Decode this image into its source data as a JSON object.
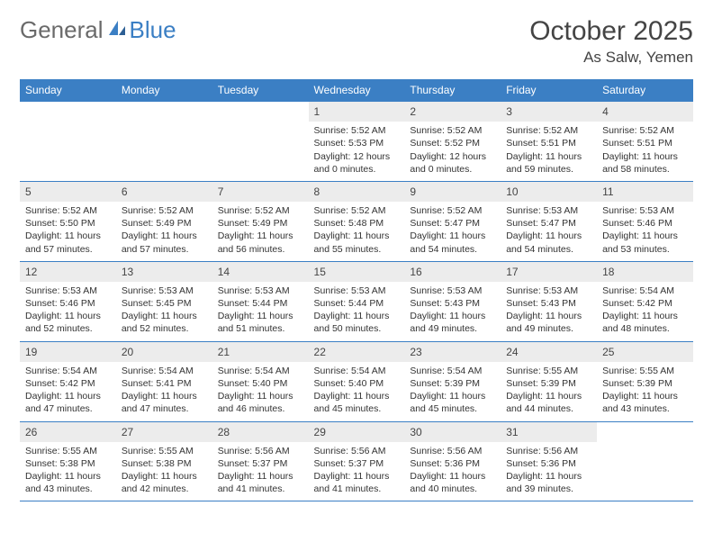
{
  "logo": {
    "part1": "General",
    "part2": "Blue"
  },
  "title": "October 2025",
  "location": "As Salw, Yemen",
  "header_bg": "#3b7fc4",
  "daynum_bg": "#ececec",
  "border_color": "#3b7fc4",
  "weekdays": [
    "Sunday",
    "Monday",
    "Tuesday",
    "Wednesday",
    "Thursday",
    "Friday",
    "Saturday"
  ],
  "weeks": [
    [
      {
        "n": "",
        "lines": []
      },
      {
        "n": "",
        "lines": []
      },
      {
        "n": "",
        "lines": []
      },
      {
        "n": "1",
        "lines": [
          "Sunrise: 5:52 AM",
          "Sunset: 5:53 PM",
          "Daylight: 12 hours and 0 minutes."
        ]
      },
      {
        "n": "2",
        "lines": [
          "Sunrise: 5:52 AM",
          "Sunset: 5:52 PM",
          "Daylight: 12 hours and 0 minutes."
        ]
      },
      {
        "n": "3",
        "lines": [
          "Sunrise: 5:52 AM",
          "Sunset: 5:51 PM",
          "Daylight: 11 hours and 59 minutes."
        ]
      },
      {
        "n": "4",
        "lines": [
          "Sunrise: 5:52 AM",
          "Sunset: 5:51 PM",
          "Daylight: 11 hours and 58 minutes."
        ]
      }
    ],
    [
      {
        "n": "5",
        "lines": [
          "Sunrise: 5:52 AM",
          "Sunset: 5:50 PM",
          "Daylight: 11 hours and 57 minutes."
        ]
      },
      {
        "n": "6",
        "lines": [
          "Sunrise: 5:52 AM",
          "Sunset: 5:49 PM",
          "Daylight: 11 hours and 57 minutes."
        ]
      },
      {
        "n": "7",
        "lines": [
          "Sunrise: 5:52 AM",
          "Sunset: 5:49 PM",
          "Daylight: 11 hours and 56 minutes."
        ]
      },
      {
        "n": "8",
        "lines": [
          "Sunrise: 5:52 AM",
          "Sunset: 5:48 PM",
          "Daylight: 11 hours and 55 minutes."
        ]
      },
      {
        "n": "9",
        "lines": [
          "Sunrise: 5:52 AM",
          "Sunset: 5:47 PM",
          "Daylight: 11 hours and 54 minutes."
        ]
      },
      {
        "n": "10",
        "lines": [
          "Sunrise: 5:53 AM",
          "Sunset: 5:47 PM",
          "Daylight: 11 hours and 54 minutes."
        ]
      },
      {
        "n": "11",
        "lines": [
          "Sunrise: 5:53 AM",
          "Sunset: 5:46 PM",
          "Daylight: 11 hours and 53 minutes."
        ]
      }
    ],
    [
      {
        "n": "12",
        "lines": [
          "Sunrise: 5:53 AM",
          "Sunset: 5:46 PM",
          "Daylight: 11 hours and 52 minutes."
        ]
      },
      {
        "n": "13",
        "lines": [
          "Sunrise: 5:53 AM",
          "Sunset: 5:45 PM",
          "Daylight: 11 hours and 52 minutes."
        ]
      },
      {
        "n": "14",
        "lines": [
          "Sunrise: 5:53 AM",
          "Sunset: 5:44 PM",
          "Daylight: 11 hours and 51 minutes."
        ]
      },
      {
        "n": "15",
        "lines": [
          "Sunrise: 5:53 AM",
          "Sunset: 5:44 PM",
          "Daylight: 11 hours and 50 minutes."
        ]
      },
      {
        "n": "16",
        "lines": [
          "Sunrise: 5:53 AM",
          "Sunset: 5:43 PM",
          "Daylight: 11 hours and 49 minutes."
        ]
      },
      {
        "n": "17",
        "lines": [
          "Sunrise: 5:53 AM",
          "Sunset: 5:43 PM",
          "Daylight: 11 hours and 49 minutes."
        ]
      },
      {
        "n": "18",
        "lines": [
          "Sunrise: 5:54 AM",
          "Sunset: 5:42 PM",
          "Daylight: 11 hours and 48 minutes."
        ]
      }
    ],
    [
      {
        "n": "19",
        "lines": [
          "Sunrise: 5:54 AM",
          "Sunset: 5:42 PM",
          "Daylight: 11 hours and 47 minutes."
        ]
      },
      {
        "n": "20",
        "lines": [
          "Sunrise: 5:54 AM",
          "Sunset: 5:41 PM",
          "Daylight: 11 hours and 47 minutes."
        ]
      },
      {
        "n": "21",
        "lines": [
          "Sunrise: 5:54 AM",
          "Sunset: 5:40 PM",
          "Daylight: 11 hours and 46 minutes."
        ]
      },
      {
        "n": "22",
        "lines": [
          "Sunrise: 5:54 AM",
          "Sunset: 5:40 PM",
          "Daylight: 11 hours and 45 minutes."
        ]
      },
      {
        "n": "23",
        "lines": [
          "Sunrise: 5:54 AM",
          "Sunset: 5:39 PM",
          "Daylight: 11 hours and 45 minutes."
        ]
      },
      {
        "n": "24",
        "lines": [
          "Sunrise: 5:55 AM",
          "Sunset: 5:39 PM",
          "Daylight: 11 hours and 44 minutes."
        ]
      },
      {
        "n": "25",
        "lines": [
          "Sunrise: 5:55 AM",
          "Sunset: 5:39 PM",
          "Daylight: 11 hours and 43 minutes."
        ]
      }
    ],
    [
      {
        "n": "26",
        "lines": [
          "Sunrise: 5:55 AM",
          "Sunset: 5:38 PM",
          "Daylight: 11 hours and 43 minutes."
        ]
      },
      {
        "n": "27",
        "lines": [
          "Sunrise: 5:55 AM",
          "Sunset: 5:38 PM",
          "Daylight: 11 hours and 42 minutes."
        ]
      },
      {
        "n": "28",
        "lines": [
          "Sunrise: 5:56 AM",
          "Sunset: 5:37 PM",
          "Daylight: 11 hours and 41 minutes."
        ]
      },
      {
        "n": "29",
        "lines": [
          "Sunrise: 5:56 AM",
          "Sunset: 5:37 PM",
          "Daylight: 11 hours and 41 minutes."
        ]
      },
      {
        "n": "30",
        "lines": [
          "Sunrise: 5:56 AM",
          "Sunset: 5:36 PM",
          "Daylight: 11 hours and 40 minutes."
        ]
      },
      {
        "n": "31",
        "lines": [
          "Sunrise: 5:56 AM",
          "Sunset: 5:36 PM",
          "Daylight: 11 hours and 39 minutes."
        ]
      },
      {
        "n": "",
        "lines": []
      }
    ]
  ]
}
